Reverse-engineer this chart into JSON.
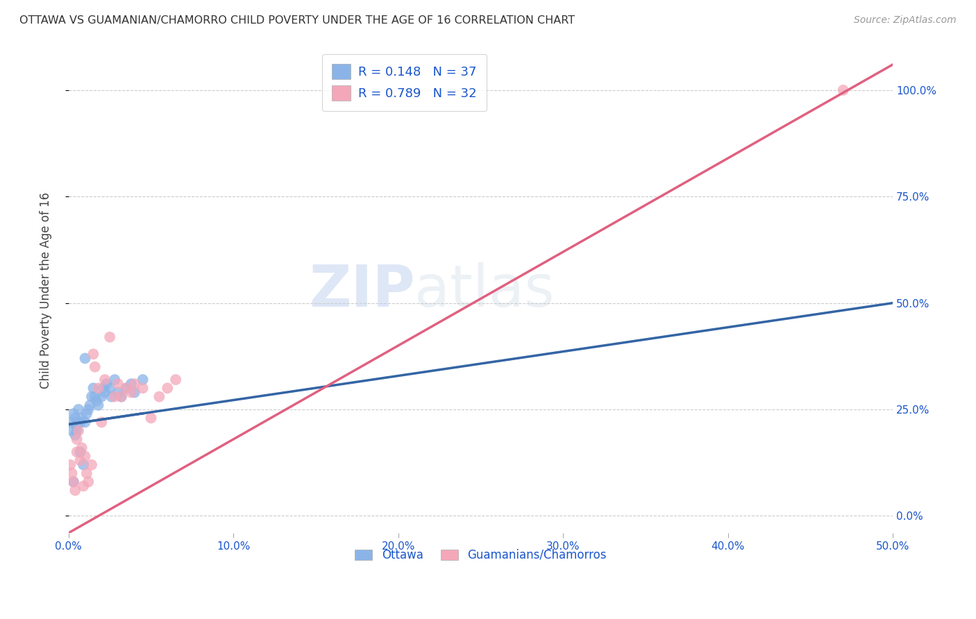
{
  "title": "OTTAWA VS GUAMANIAN/CHAMORRO CHILD POVERTY UNDER THE AGE OF 16 CORRELATION CHART",
  "source": "Source: ZipAtlas.com",
  "ylabel": "Child Poverty Under the Age of 16",
  "blue_color": "#8ab4e8",
  "pink_color": "#f4a7b9",
  "blue_line_color": "#3465a4",
  "pink_line_color": "#e06080",
  "blue_dashed_color": "#a8c8f8",
  "blue_text_color": "#1a56cc",
  "R_blue": 0.148,
  "N_blue": 37,
  "R_pink": 0.789,
  "N_pink": 32,
  "watermark_zip": "ZIP",
  "watermark_atlas": "atlas",
  "xlim": [
    0.0,
    0.5
  ],
  "ylim": [
    -0.04,
    1.1
  ],
  "xticks": [
    0.0,
    0.1,
    0.2,
    0.3,
    0.4,
    0.5
  ],
  "xtick_labels": [
    "0.0%",
    "10.0%",
    "20.0%",
    "30.0%",
    "40.0%",
    "50.0%"
  ],
  "yticks": [
    0.0,
    0.25,
    0.5,
    0.75,
    1.0
  ],
  "ytick_labels": [
    "0.0%",
    "25.0%",
    "50.0%",
    "75.0%",
    "100.0%"
  ],
  "ottawa_x": [
    0.001,
    0.002,
    0.003,
    0.003,
    0.004,
    0.004,
    0.005,
    0.005,
    0.005,
    0.006,
    0.007,
    0.007,
    0.008,
    0.009,
    0.01,
    0.01,
    0.011,
    0.012,
    0.013,
    0.014,
    0.015,
    0.016,
    0.017,
    0.018,
    0.02,
    0.021,
    0.022,
    0.023,
    0.025,
    0.026,
    0.028,
    0.03,
    0.032,
    0.035,
    0.038,
    0.04,
    0.045
  ],
  "ottawa_y": [
    0.22,
    0.2,
    0.08,
    0.24,
    0.19,
    0.23,
    0.21,
    0.2,
    0.22,
    0.25,
    0.15,
    0.22,
    0.23,
    0.12,
    0.37,
    0.22,
    0.24,
    0.25,
    0.26,
    0.28,
    0.3,
    0.28,
    0.27,
    0.26,
    0.28,
    0.3,
    0.29,
    0.31,
    0.3,
    0.28,
    0.32,
    0.29,
    0.28,
    0.3,
    0.31,
    0.29,
    0.32
  ],
  "guam_x": [
    0.001,
    0.002,
    0.003,
    0.004,
    0.005,
    0.005,
    0.006,
    0.007,
    0.008,
    0.009,
    0.01,
    0.011,
    0.012,
    0.014,
    0.015,
    0.016,
    0.018,
    0.02,
    0.022,
    0.025,
    0.028,
    0.03,
    0.032,
    0.035,
    0.038,
    0.04,
    0.045,
    0.05,
    0.055,
    0.06,
    0.065,
    0.47
  ],
  "guam_y": [
    0.12,
    0.1,
    0.08,
    0.06,
    0.15,
    0.18,
    0.2,
    0.13,
    0.16,
    0.07,
    0.14,
    0.1,
    0.08,
    0.12,
    0.38,
    0.35,
    0.3,
    0.22,
    0.32,
    0.42,
    0.28,
    0.31,
    0.28,
    0.3,
    0.29,
    0.31,
    0.3,
    0.23,
    0.28,
    0.3,
    0.32,
    1.0
  ],
  "blue_line_x": [
    0.0,
    0.5
  ],
  "blue_line_y": [
    0.215,
    0.5
  ],
  "pink_line_x": [
    0.0,
    0.5
  ],
  "pink_line_y": [
    -0.04,
    1.06
  ]
}
